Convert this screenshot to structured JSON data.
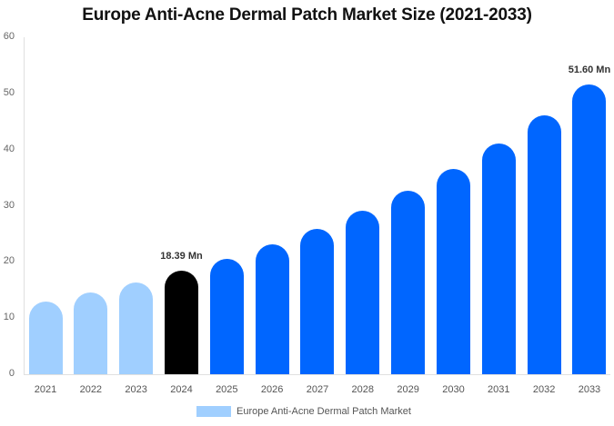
{
  "chart_data": {
    "type": "bar",
    "title": "Europe Anti-Acne Dermal Patch Market Size (2021-2033)",
    "xlabel": "",
    "ylabel": "",
    "ylim": [
      0,
      60
    ],
    "yticks": [
      0,
      10,
      20,
      30,
      40,
      50,
      60
    ],
    "grid": false,
    "legend_position": "bottom",
    "categories": [
      "2021",
      "2022",
      "2023",
      "2024",
      "2025",
      "2026",
      "2027",
      "2028",
      "2029",
      "2030",
      "2031",
      "2032",
      "2033"
    ],
    "series": [
      {
        "name": "Europe Anti-Acne Dermal Patch Market",
        "values": [
          12.9,
          14.6,
          16.3,
          18.39,
          20.5,
          23.1,
          25.9,
          29.1,
          32.7,
          36.6,
          41.1,
          46.1,
          51.6
        ]
      }
    ],
    "bar_colors": [
      "#a0cfff",
      "#a0cfff",
      "#a0cfff",
      "#000000",
      "#0066ff",
      "#0066ff",
      "#0066ff",
      "#0066ff",
      "#0066ff",
      "#0066ff",
      "#0066ff",
      "#0066ff",
      "#0066ff"
    ],
    "annotations": [
      {
        "category": "2024",
        "text": "18.39 Mn"
      },
      {
        "category": "2033",
        "text": "51.60 Mn"
      }
    ]
  },
  "legend": {
    "label": "Europe Anti-Acne Dermal Patch Market",
    "color": "#a0cfff"
  }
}
